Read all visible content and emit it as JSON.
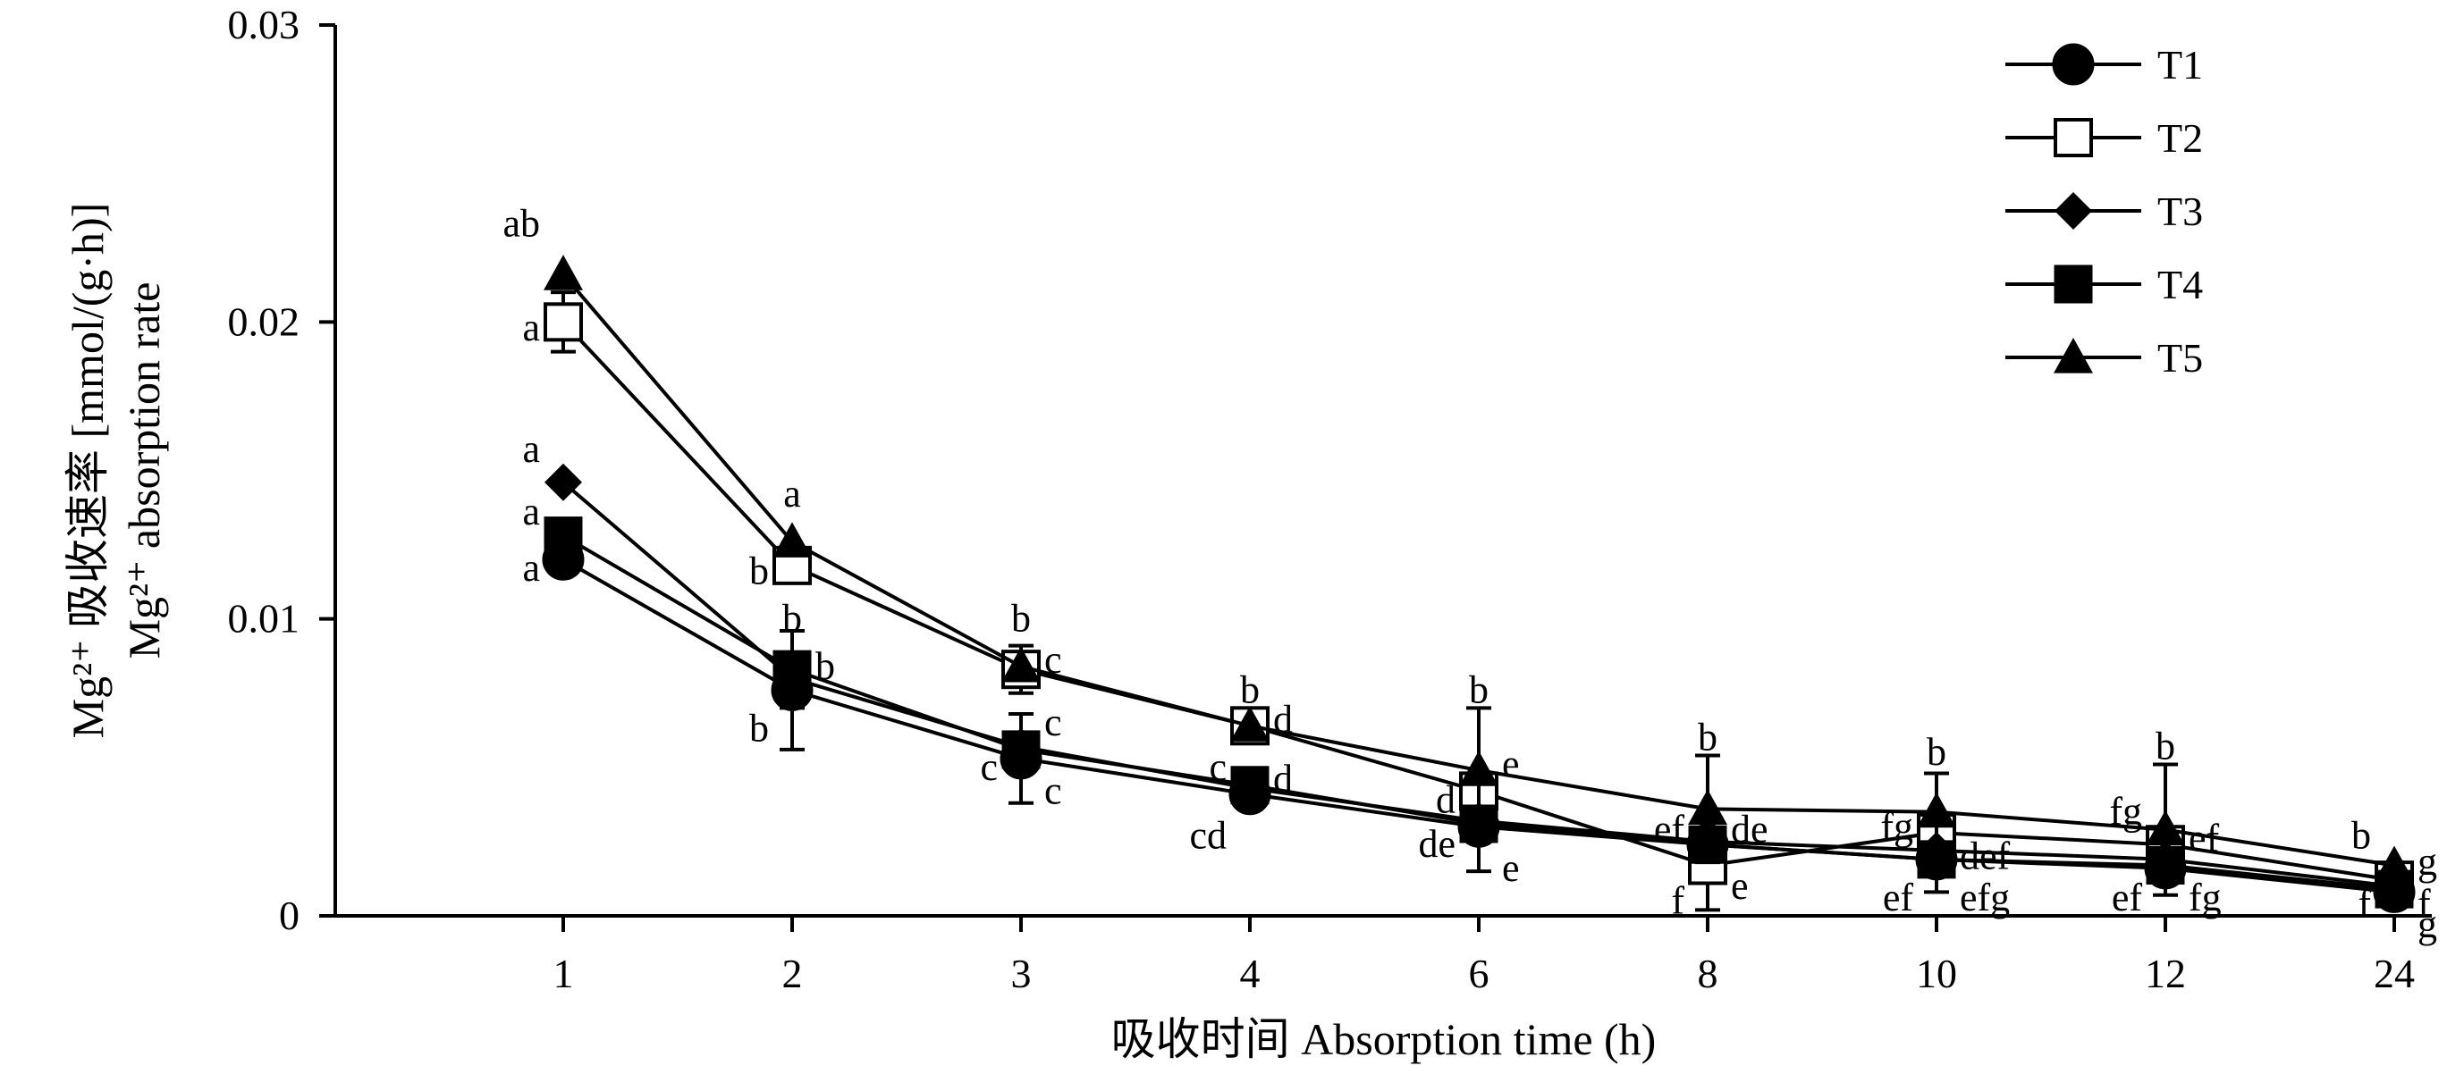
{
  "chart_data": {
    "type": "line",
    "xlabel": "吸收时间 Absorption time (h)",
    "ylabel_line1": "Mg²⁺ 吸收速率 [mmol/(g·h)]",
    "ylabel_line2": "Mg²⁺ absorption rate",
    "categories": [
      "1",
      "2",
      "3",
      "4",
      "6",
      "8",
      "10",
      "12",
      "24"
    ],
    "y_ticks": [
      "0",
      "0.01",
      "0.02",
      "0.03"
    ],
    "ylim": [
      0,
      0.03
    ],
    "grid": false,
    "legend_position": "top-right",
    "series": [
      {
        "name": "T1",
        "marker": "circle-filled",
        "values": [
          0.012,
          0.0076,
          0.0053,
          0.0041,
          0.003,
          0.0024,
          0.0019,
          0.0016,
          0.0008
        ],
        "errors": [
          0,
          0.002,
          0.0015,
          0,
          0.0015,
          0,
          0,
          0,
          0
        ]
      },
      {
        "name": "T2",
        "marker": "square-open",
        "values": [
          0.02,
          0.0118,
          0.0083,
          0.0064,
          0.0042,
          0.0017,
          0.0028,
          0.0024,
          0.0012
        ],
        "errors": [
          0.001,
          0,
          0.0008,
          0,
          0,
          0.0015,
          0.002,
          0,
          0
        ]
      },
      {
        "name": "T3",
        "marker": "diamond-filled",
        "values": [
          0.0146,
          0.008,
          0.0057,
          0.0043,
          0.0032,
          0.0025,
          0.0022,
          0.0019,
          0.001
        ],
        "errors": [
          0,
          0,
          0,
          0,
          0,
          0,
          0,
          0,
          0
        ]
      },
      {
        "name": "T4",
        "marker": "square-filled",
        "values": [
          0.0128,
          0.0083,
          0.0056,
          0.0044,
          0.0031,
          0.0024,
          0.0019,
          0.0017,
          0.0009
        ],
        "errors": [
          0,
          0.0013,
          0,
          0,
          0,
          0,
          0,
          0,
          0
        ]
      },
      {
        "name": "T5",
        "marker": "triangle-filled",
        "values": [
          0.0216,
          0.0126,
          0.0084,
          0.0064,
          0.0049,
          0.0036,
          0.0035,
          0.0029,
          0.0017
        ],
        "errors": [
          0,
          0,
          0,
          0,
          0.0021,
          0.0018,
          0.0013,
          0.0022,
          0
        ]
      }
    ],
    "annotations": [
      {
        "text": "ab",
        "x": "1",
        "y": 0.0233,
        "anchor": "end"
      },
      {
        "text": "a",
        "x": "1",
        "y": 0.0198,
        "anchor": "end"
      },
      {
        "text": "a",
        "x": "1",
        "y": 0.0157,
        "anchor": "end"
      },
      {
        "text": "a",
        "x": "1",
        "y": 0.0136,
        "anchor": "end"
      },
      {
        "text": "a",
        "x": "1",
        "y": 0.0117,
        "anchor": "end"
      },
      {
        "text": "a",
        "x": "2",
        "y": 0.0142,
        "anchor": "middle"
      },
      {
        "text": "b",
        "x": "2",
        "y": 0.0116,
        "anchor": "end"
      },
      {
        "text": "b",
        "x": "2",
        "y": 0.01,
        "anchor": "middle"
      },
      {
        "text": "b",
        "x": "2",
        "y": 0.0084,
        "anchor": "start"
      },
      {
        "text": "b",
        "x": "2",
        "y": 0.0063,
        "anchor": "end"
      },
      {
        "text": "b",
        "x": "3",
        "y": 0.01,
        "anchor": "middle"
      },
      {
        "text": "c",
        "x": "3",
        "y": 0.0086,
        "anchor": "start"
      },
      {
        "text": "c",
        "x": "3",
        "y": 0.0065,
        "anchor": "start"
      },
      {
        "text": "c",
        "x": "3",
        "y": 0.005,
        "anchor": "end"
      },
      {
        "text": "c",
        "x": "3",
        "y": 0.0042,
        "anchor": "start"
      },
      {
        "text": "b",
        "x": "4",
        "y": 0.0076,
        "anchor": "middle"
      },
      {
        "text": "d",
        "x": "4",
        "y": 0.0066,
        "anchor": "start"
      },
      {
        "text": "c",
        "x": "4",
        "y": 0.005,
        "anchor": "end"
      },
      {
        "text": "d",
        "x": "4",
        "y": 0.0046,
        "anchor": "start"
      },
      {
        "text": "cd",
        "x": "4",
        "y": 0.0027,
        "anchor": "end"
      },
      {
        "text": "b",
        "x": "6",
        "y": 0.0076,
        "anchor": "middle"
      },
      {
        "text": "e",
        "x": "6",
        "y": 0.0051,
        "anchor": "start"
      },
      {
        "text": "d",
        "x": "6",
        "y": 0.0039,
        "anchor": "end"
      },
      {
        "text": "de",
        "x": "6",
        "y": 0.0024,
        "anchor": "end"
      },
      {
        "text": "e",
        "x": "6",
        "y": 0.0016,
        "anchor": "start"
      },
      {
        "text": "b",
        "x": "8",
        "y": 0.006,
        "anchor": "middle"
      },
      {
        "text": "ef",
        "x": "8",
        "y": 0.0029,
        "anchor": "end"
      },
      {
        "text": "de",
        "x": "8",
        "y": 0.0029,
        "anchor": "start"
      },
      {
        "text": "e",
        "x": "8",
        "y": 0.001,
        "anchor": "start"
      },
      {
        "text": "f",
        "x": "8",
        "y": 0.0005,
        "anchor": "end"
      },
      {
        "text": "b",
        "x": "10",
        "y": 0.0055,
        "anchor": "middle"
      },
      {
        "text": "fg",
        "x": "10",
        "y": 0.003,
        "anchor": "end"
      },
      {
        "text": "def",
        "x": "10",
        "y": 0.002,
        "anchor": "start"
      },
      {
        "text": "ef",
        "x": "10",
        "y": 0.0006,
        "anchor": "end"
      },
      {
        "text": "efg",
        "x": "10",
        "y": 0.0006,
        "anchor": "start"
      },
      {
        "text": "b",
        "x": "12",
        "y": 0.0057,
        "anchor": "middle"
      },
      {
        "text": "fg",
        "x": "12",
        "y": 0.0035,
        "anchor": "end"
      },
      {
        "text": "ef",
        "x": "12",
        "y": 0.0026,
        "anchor": "start"
      },
      {
        "text": "ef",
        "x": "12",
        "y": 0.0006,
        "anchor": "end"
      },
      {
        "text": "fg",
        "x": "12",
        "y": 0.0006,
        "anchor": "start"
      },
      {
        "text": "b",
        "x": "24",
        "y": 0.0027,
        "anchor": "end"
      },
      {
        "text": "g",
        "x": "24",
        "y": 0.0018,
        "anchor": "start"
      },
      {
        "text": "f",
        "x": "24",
        "y": 0.0004,
        "anchor": "start"
      },
      {
        "text": "f",
        "x": "24",
        "y": 0.0004,
        "anchor": "end"
      },
      {
        "text": "g",
        "x": "24",
        "y": -0.0003,
        "anchor": "start"
      }
    ]
  }
}
